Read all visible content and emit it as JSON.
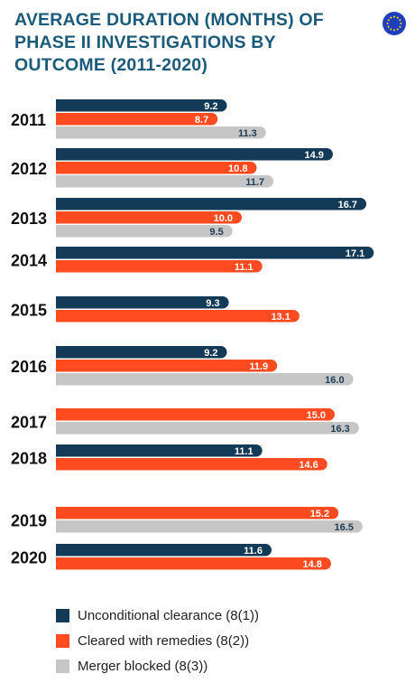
{
  "header": {
    "title_lines": [
      "AVERAGE DURATION (MONTHS) OF",
      "PHASE II INVESTIGATIONS BY",
      "OUTCOME (2011-2020)"
    ],
    "logo_icon": "eu-flag-icon"
  },
  "colors": {
    "title": "#1a5a7a",
    "unconditional": "#133a56",
    "remedies": "#ff4b1f",
    "blocked": "#c6c6c6"
  },
  "chart_data": {
    "type": "bar",
    "orientation": "horizontal",
    "categories": [
      "2011",
      "2012",
      "2013",
      "2014",
      "2015",
      "2016",
      "2017",
      "2018",
      "2019",
      "2020"
    ],
    "series": [
      {
        "name": "Unconditional clearance (8(1))",
        "values": [
          9.2,
          14.9,
          16.7,
          17.1,
          9.3,
          9.2,
          null,
          11.1,
          null,
          11.6
        ]
      },
      {
        "name": "Cleared with remedies (8(2))",
        "values": [
          8.7,
          10.8,
          10.0,
          11.1,
          13.1,
          11.9,
          15.0,
          14.6,
          15.2,
          14.8
        ]
      },
      {
        "name": "Merger blocked (8(3))",
        "values": [
          11.3,
          11.7,
          9.5,
          null,
          null,
          16.0,
          16.3,
          null,
          16.5,
          null
        ]
      }
    ],
    "value_labels": [
      [
        "9.2",
        "14.9",
        "16.7",
        "17.1",
        "9.3",
        "9.2",
        null,
        "11.1",
        null,
        "11.6"
      ],
      [
        "8.7",
        "10.8",
        "10.0",
        "11.1",
        "13.1",
        "11.9",
        "15.0",
        "14.6",
        "15.2",
        "14.8"
      ],
      [
        "11.3",
        "11.7",
        "9.5",
        null,
        null,
        "16.0",
        "16.3",
        null,
        "16.5",
        null
      ]
    ],
    "xlim": [
      0,
      17.5
    ],
    "grid": false,
    "legend_position": "bottom-left"
  }
}
